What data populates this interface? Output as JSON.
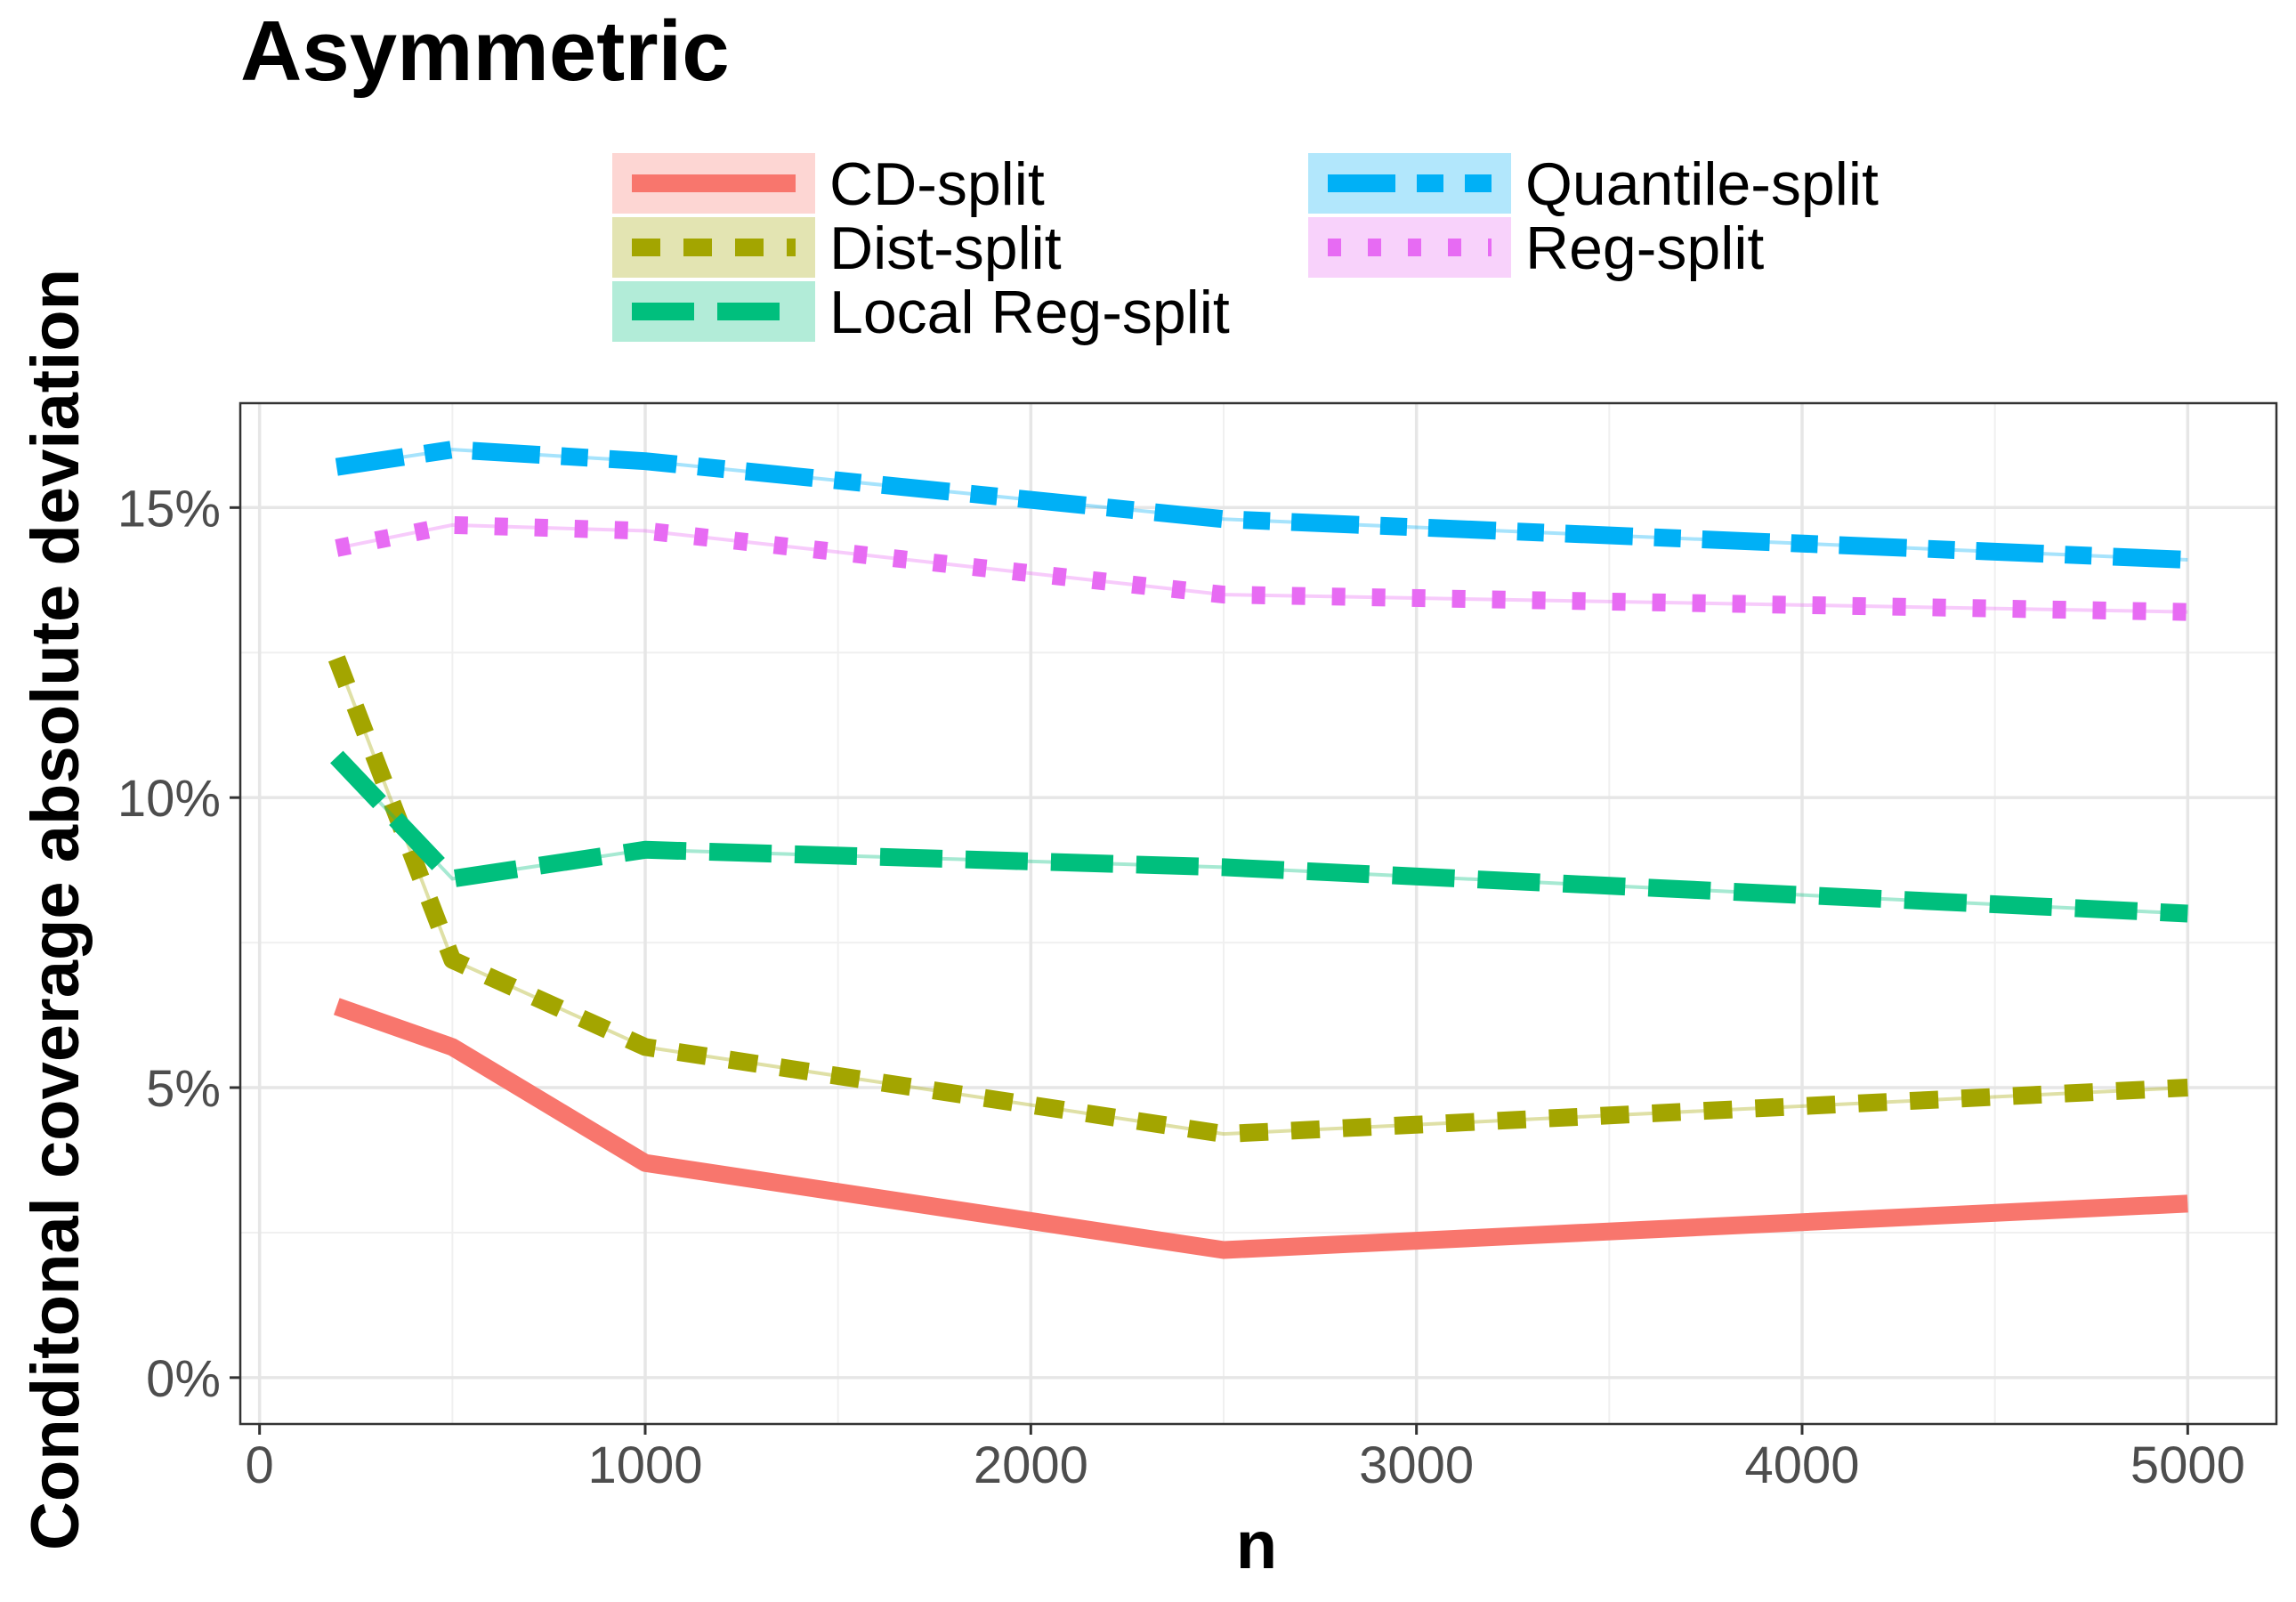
{
  "chart_data": {
    "type": "line",
    "title": "Asymmetric",
    "xlabel": "n",
    "ylabel": "Conditonal coverage absolute deviation",
    "xlim": [
      -50,
      5230
    ],
    "ylim": [
      -0.8,
      16.8
    ],
    "xticks": [
      0,
      1000,
      2000,
      3000,
      4000,
      5000
    ],
    "xtick_labels": [
      "0",
      "1000",
      "2000",
      "3000",
      "4000",
      "5000"
    ],
    "yticks": [
      0,
      5,
      10,
      15
    ],
    "ytick_labels": [
      "0%",
      "5%",
      "10%",
      "15%"
    ],
    "x": [
      200,
      500,
      1000,
      2500,
      5000
    ],
    "grid": true,
    "legend_position": "top",
    "series": [
      {
        "name": "CD-split",
        "values": [
          6.4,
          5.7,
          3.7,
          2.2,
          3.0
        ],
        "color": "#F8766D",
        "dash": "solid"
      },
      {
        "name": "Dist-split",
        "values": [
          12.4,
          7.2,
          5.7,
          4.2,
          5.0
        ],
        "color": "#A3A500",
        "dash": "short"
      },
      {
        "name": "Local Reg-split",
        "values": [
          10.7,
          8.6,
          9.1,
          8.8,
          8.0
        ],
        "color": "#00BF7D",
        "dash": "long"
      },
      {
        "name": "Quantile-split",
        "values": [
          15.7,
          16.0,
          15.8,
          14.8,
          14.1
        ],
        "color": "#00B0F6",
        "dash": "longshort"
      },
      {
        "name": "Reg-split",
        "values": [
          14.3,
          14.7,
          14.6,
          13.5,
          13.2
        ],
        "color": "#E76BF3",
        "dash": "dot"
      }
    ]
  }
}
